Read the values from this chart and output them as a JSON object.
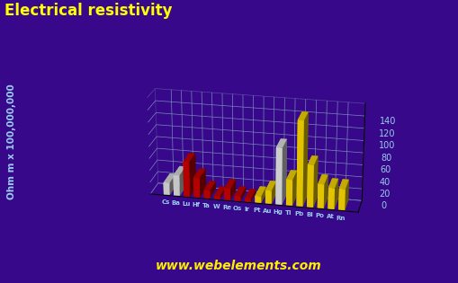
{
  "title": "Electrical resistivity",
  "ylabel": "Ohm m x 100,000,000",
  "bg": "#38088a",
  "title_color": "#ffff00",
  "axis_label_color": "#99ccee",
  "tick_color": "#99ccee",
  "grid_color": "#7788bb",
  "watermark": "www.webelements.com",
  "watermark_color": "#ffee00",
  "elements": [
    "Cs",
    "Ba",
    "Lu",
    "Hf",
    "Ta",
    "W",
    "Re",
    "Os",
    "Ir",
    "Pt",
    "Au",
    "Hg",
    "Tl",
    "Pb",
    "Bi",
    "Po",
    "At",
    "Rn"
  ],
  "values": [
    20,
    34,
    58,
    33,
    13,
    5,
    19,
    8,
    5,
    11,
    22,
    94,
    43,
    141,
    70,
    40,
    35,
    35
  ],
  "colors": [
    "#e0e0e0",
    "#e0e0e0",
    "#cc0000",
    "#cc0000",
    "#cc0000",
    "#cc0000",
    "#cc0000",
    "#cc0000",
    "#cc0000",
    "#ffdd00",
    "#ffdd00",
    "#e8e8e8",
    "#ffdd00",
    "#ffdd00",
    "#ffdd00",
    "#ffdd00",
    "#ffdd00",
    "#ffdd00"
  ],
  "base_color": "#2244cc",
  "ylim": [
    0,
    160
  ],
  "yticks": [
    0,
    20,
    40,
    60,
    80,
    100,
    120,
    140
  ],
  "elev": 22,
  "azim": -78
}
